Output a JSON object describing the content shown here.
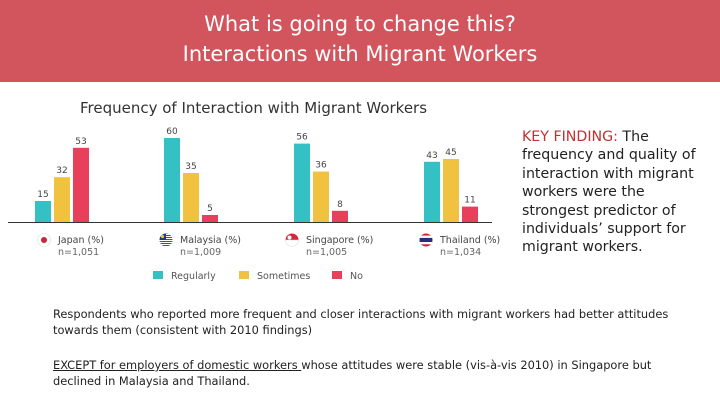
{
  "header": {
    "line1": "What is going to change this?",
    "line2": "Interactions with Migrant Workers",
    "background": "#d2545d"
  },
  "chart_data": {
    "type": "bar",
    "title": "Frequency of Interaction with Migrant Workers",
    "categories": [
      "Japan (%)",
      "Malaysia (%)",
      "Singapore (%)",
      "Thailand (%)"
    ],
    "sample_sizes": [
      "n=1,051",
      "n=1,009",
      "n=1,005",
      "n=1,034"
    ],
    "category_flags": [
      "japan-flag-icon",
      "malaysia-flag-icon",
      "singapore-flag-icon",
      "thailand-flag-icon"
    ],
    "series": [
      {
        "name": "Regularly",
        "color": "#35c1c4",
        "values": [
          15,
          60,
          56,
          43
        ]
      },
      {
        "name": "Sometimes",
        "color": "#f1c23f",
        "values": [
          32,
          35,
          36,
          45
        ]
      },
      {
        "name": "No",
        "color": "#e8405b",
        "values": [
          53,
          5,
          8,
          11
        ]
      }
    ],
    "ylim": [
      0,
      60
    ],
    "grid": false,
    "legend_position": "bottom",
    "xlabel": "",
    "ylabel": ""
  },
  "key_finding": {
    "label": "KEY FINDING:",
    "text": "The frequency and quality of interaction with migrant workers were the strongest predictor of individuals’ support for migrant workers."
  },
  "paragraphs": {
    "p1": "Respondents who reported more frequent and closer interactions with migrant workers had better attitudes towards them (consistent with 2010 findings)",
    "p2_underlined": "EXCEPT for employers of domestic workers ",
    "p2_rest": "whose attitudes were stable (vis-à-vis 2010) in Singapore but declined in Malaysia and Thailand."
  }
}
